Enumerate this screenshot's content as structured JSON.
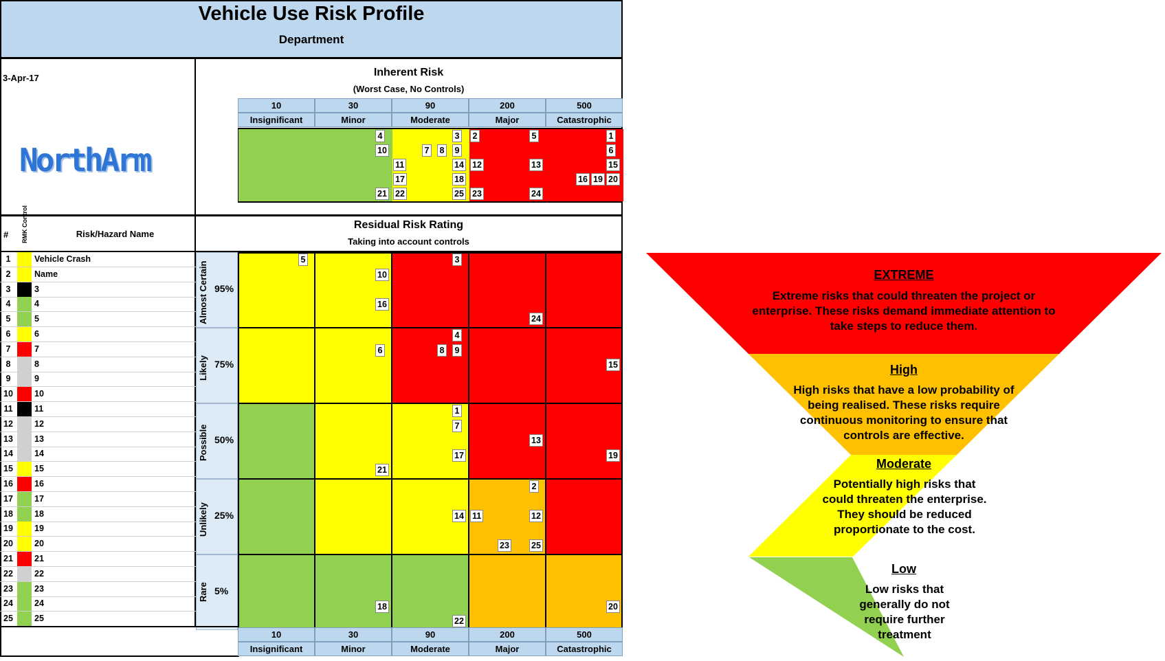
{
  "header": {
    "title": "Vehicle Use Risk Profile",
    "subtitle": "Department",
    "date": "3-Apr-17",
    "logo_text": "NorthArm"
  },
  "inherent": {
    "title": "Inherent Risk",
    "subtitle": "(Worst Case, No Controls)"
  },
  "residual": {
    "title": "Residual Risk Rating",
    "subtitle": "Taking into account controls"
  },
  "list_header": {
    "num": "#",
    "rmk": "RMK Control",
    "name": "Risk/Hazard Name"
  },
  "consequences": [
    {
      "value": "10",
      "label": "Insignificant"
    },
    {
      "value": "30",
      "label": "Minor"
    },
    {
      "value": "90",
      "label": "Moderate"
    },
    {
      "value": "200",
      "label": "Major"
    },
    {
      "value": "500",
      "label": "Catastrophic"
    }
  ],
  "likelihoods": [
    {
      "label": "Almost Certain",
      "pct": "95%"
    },
    {
      "label": "Likely",
      "pct": "75%"
    },
    {
      "label": "Possible",
      "pct": "50%"
    },
    {
      "label": "Unlikely",
      "pct": "25%"
    },
    {
      "label": "Rare",
      "pct": "5%"
    }
  ],
  "colors": {
    "extreme": "#ff0000",
    "high": "#ffc000",
    "moderate": "#ffff00",
    "low": "#92d050",
    "header_blue": "#bdd7ee",
    "black": "#000000",
    "grey": "#d0d0d0"
  },
  "inherent_cols": [
    "low",
    "low",
    "moderate",
    "extreme",
    "extreme"
  ],
  "inherent_markers": [
    {
      "n": "4",
      "col": 1,
      "row": 0
    },
    {
      "n": "10",
      "col": 1,
      "row": 1
    },
    {
      "n": "21",
      "col": 1,
      "row": 4
    },
    {
      "n": "3",
      "col": 2,
      "row": 0
    },
    {
      "n": "7",
      "col": 2,
      "row": 1
    },
    {
      "n": "8",
      "col": 2,
      "row": 1
    },
    {
      "n": "9",
      "col": 2,
      "row": 1
    },
    {
      "n": "11",
      "col": 2,
      "row": 2
    },
    {
      "n": "14",
      "col": 2,
      "row": 2
    },
    {
      "n": "17",
      "col": 2,
      "row": 3
    },
    {
      "n": "18",
      "col": 2,
      "row": 3
    },
    {
      "n": "22",
      "col": 2,
      "row": 4
    },
    {
      "n": "25",
      "col": 2,
      "row": 4
    },
    {
      "n": "2",
      "col": 3,
      "row": 0
    },
    {
      "n": "5",
      "col": 3,
      "row": 0
    },
    {
      "n": "12",
      "col": 3,
      "row": 2
    },
    {
      "n": "13",
      "col": 3,
      "row": 2
    },
    {
      "n": "23",
      "col": 3,
      "row": 4
    },
    {
      "n": "24",
      "col": 3,
      "row": 4
    },
    {
      "n": "1",
      "col": 4,
      "row": 0
    },
    {
      "n": "6",
      "col": 4,
      "row": 1
    },
    {
      "n": "15",
      "col": 4,
      "row": 2
    },
    {
      "n": "16",
      "col": 4,
      "row": 3
    },
    {
      "n": "19",
      "col": 4,
      "row": 3
    },
    {
      "n": "20",
      "col": 4,
      "row": 3
    }
  ],
  "residual_grid": [
    [
      "moderate",
      "moderate",
      "extreme",
      "extreme",
      "extreme"
    ],
    [
      "moderate",
      "moderate",
      "extreme",
      "extreme",
      "extreme"
    ],
    [
      "low",
      "moderate",
      "moderate",
      "extreme",
      "extreme"
    ],
    [
      "low",
      "moderate",
      "moderate",
      "high",
      "extreme"
    ],
    [
      "low",
      "low",
      "low",
      "high",
      "high"
    ]
  ],
  "residual_markers": [
    {
      "n": "5",
      "r": 0,
      "c": 0,
      "sub": 0
    },
    {
      "n": "10",
      "r": 0,
      "c": 1,
      "sub": 1
    },
    {
      "n": "16",
      "r": 0,
      "c": 1,
      "sub": 3
    },
    {
      "n": "3",
      "r": 0,
      "c": 2,
      "sub": 0
    },
    {
      "n": "24",
      "r": 0,
      "c": 3,
      "sub": 4
    },
    {
      "n": "6",
      "r": 1,
      "c": 1,
      "sub": 1
    },
    {
      "n": "4",
      "r": 1,
      "c": 2,
      "sub": 0
    },
    {
      "n": "8",
      "r": 1,
      "c": 2,
      "sub": 1
    },
    {
      "n": "9",
      "r": 1,
      "c": 2,
      "sub": 1
    },
    {
      "n": "15",
      "r": 1,
      "c": 4,
      "sub": 2
    },
    {
      "n": "21",
      "r": 2,
      "c": 1,
      "sub": 4
    },
    {
      "n": "1",
      "r": 2,
      "c": 2,
      "sub": 0
    },
    {
      "n": "7",
      "r": 2,
      "c": 2,
      "sub": 1
    },
    {
      "n": "17",
      "r": 2,
      "c": 2,
      "sub": 3
    },
    {
      "n": "13",
      "r": 2,
      "c": 3,
      "sub": 2
    },
    {
      "n": "19",
      "r": 2,
      "c": 4,
      "sub": 3
    },
    {
      "n": "14",
      "r": 3,
      "c": 2,
      "sub": 2
    },
    {
      "n": "2",
      "r": 3,
      "c": 3,
      "sub": 0
    },
    {
      "n": "11",
      "r": 3,
      "c": 3,
      "sub": 2
    },
    {
      "n": "12",
      "r": 3,
      "c": 3,
      "sub": 2
    },
    {
      "n": "23",
      "r": 3,
      "c": 3,
      "sub": 4
    },
    {
      "n": "25",
      "r": 3,
      "c": 3,
      "sub": 4
    },
    {
      "n": "18",
      "r": 4,
      "c": 1,
      "sub": 3
    },
    {
      "n": "22",
      "r": 4,
      "c": 2,
      "sub": 4
    },
    {
      "n": "20",
      "r": 4,
      "c": 4,
      "sub": 3
    }
  ],
  "risks": [
    {
      "num": "1",
      "control": "moderate",
      "name": "Vehicle Crash"
    },
    {
      "num": "2",
      "control": "moderate",
      "name": "Name"
    },
    {
      "num": "3",
      "control": "black",
      "name": "3"
    },
    {
      "num": "4",
      "control": "low",
      "name": "4"
    },
    {
      "num": "5",
      "control": "low",
      "name": "5"
    },
    {
      "num": "6",
      "control": "moderate",
      "name": "6"
    },
    {
      "num": "7",
      "control": "extreme",
      "name": "7"
    },
    {
      "num": "8",
      "control": "grey",
      "name": "8"
    },
    {
      "num": "9",
      "control": "grey",
      "name": "9"
    },
    {
      "num": "10",
      "control": "extreme",
      "name": "10"
    },
    {
      "num": "11",
      "control": "black",
      "name": "11"
    },
    {
      "num": "12",
      "control": "grey",
      "name": "12"
    },
    {
      "num": "13",
      "control": "grey",
      "name": "13"
    },
    {
      "num": "14",
      "control": "grey",
      "name": "14"
    },
    {
      "num": "15",
      "control": "moderate",
      "name": "15"
    },
    {
      "num": "16",
      "control": "extreme",
      "name": "16"
    },
    {
      "num": "17",
      "control": "low",
      "name": "17"
    },
    {
      "num": "18",
      "control": "low",
      "name": "18"
    },
    {
      "num": "19",
      "control": "moderate",
      "name": "19"
    },
    {
      "num": "20",
      "control": "moderate",
      "name": "20"
    },
    {
      "num": "21",
      "control": "extreme",
      "name": "21"
    },
    {
      "num": "22",
      "control": "grey",
      "name": "22"
    },
    {
      "num": "23",
      "control": "low",
      "name": "23"
    },
    {
      "num": "24",
      "control": "low",
      "name": "24"
    },
    {
      "num": "25",
      "control": "low",
      "name": "25"
    }
  ],
  "legend": {
    "extreme": {
      "title": "EXTREME",
      "text": "Extreme risks that could threaten the project or enterprise. These risks demand immediate attention to take steps to reduce them."
    },
    "high": {
      "title": "High",
      "text": "High risks that have a low probability of being realised. These risks require continuous monitoring to ensure that controls are effective."
    },
    "moderate": {
      "title": "Moderate",
      "text": "Potentially high risks that could threaten the enterprise. They should be reduced proportionate to the cost."
    },
    "low": {
      "title": "Low",
      "text": "Low risks that generally do not require further treatment"
    }
  }
}
